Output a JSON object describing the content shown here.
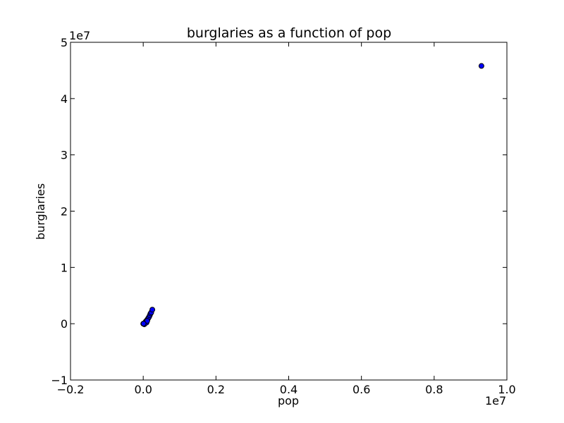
{
  "chart_data": {
    "type": "scatter",
    "title": "burglaries as a function of pop",
    "xlabel": "pop",
    "ylabel": "burglaries",
    "xlim": [
      -0.2,
      1.0
    ],
    "ylim": [
      -1,
      5
    ],
    "x_multiplier_label": "1e7",
    "y_multiplier_label": "1e7",
    "x_ticks": [
      -0.2,
      0.0,
      0.2,
      0.4,
      0.6,
      0.8,
      1.0
    ],
    "x_tick_labels": [
      "−0.2",
      "0.0",
      "0.2",
      "0.4",
      "0.6",
      "0.8",
      "1.0"
    ],
    "y_ticks": [
      -1,
      0,
      1,
      2,
      3,
      4,
      5
    ],
    "y_tick_labels": [
      "−1",
      "0",
      "1",
      "2",
      "3",
      "4",
      "5"
    ],
    "marker_color": "#0000ff",
    "marker_edge_color": "#000000",
    "grid": false,
    "points": [
      {
        "x": 0.0,
        "y": 0.0
      },
      {
        "x": 0.002,
        "y": 0.005
      },
      {
        "x": 0.004,
        "y": 0.01
      },
      {
        "x": 0.006,
        "y": 0.02
      },
      {
        "x": 0.008,
        "y": 0.03
      },
      {
        "x": 0.003,
        "y": -0.01
      },
      {
        "x": 0.005,
        "y": 0.015
      },
      {
        "x": 0.007,
        "y": 0.04
      },
      {
        "x": 0.01,
        "y": 0.06
      },
      {
        "x": 0.012,
        "y": 0.08
      },
      {
        "x": 0.014,
        "y": 0.1
      },
      {
        "x": 0.016,
        "y": 0.12
      },
      {
        "x": 0.018,
        "y": 0.15
      },
      {
        "x": 0.02,
        "y": 0.18
      },
      {
        "x": 0.022,
        "y": 0.2
      },
      {
        "x": 0.025,
        "y": 0.25
      },
      {
        "x": 0.009,
        "y": 0.02
      },
      {
        "x": 0.011,
        "y": 0.05
      },
      {
        "x": 0.001,
        "y": 0.002
      },
      {
        "x": 0.93,
        "y": 4.58
      }
    ]
  }
}
